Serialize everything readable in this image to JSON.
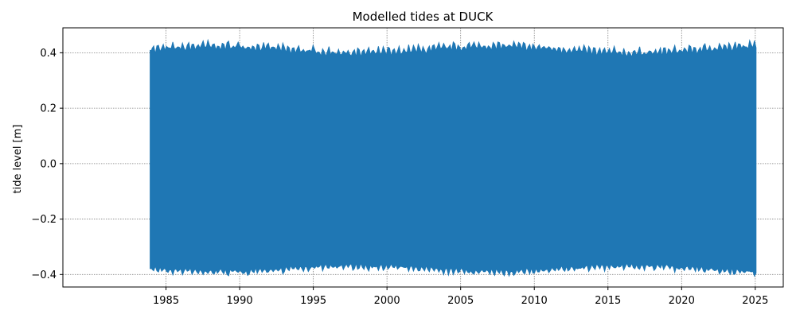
{
  "chart_data": {
    "type": "line",
    "title": "Modelled tides at DUCK",
    "xlabel": "",
    "ylabel": "tide level [m]",
    "xlim": [
      1978.0,
      2026.9
    ],
    "ylim": [
      -0.445,
      0.49
    ],
    "xticks": [
      1985,
      1990,
      1995,
      2000,
      2005,
      2010,
      2015,
      2020,
      2025
    ],
    "yticks": [
      -0.4,
      -0.2,
      0.0,
      0.2,
      0.4
    ],
    "ytick_labels": [
      "−0.4",
      "−0.2",
      "0.0",
      "0.2",
      "0.4"
    ],
    "grid": true,
    "series": [
      {
        "color": "#1f77b4",
        "x": [
          1983.95,
          2025.05
        ],
        "y_min_envelope": [
          -0.38,
          -0.37
        ],
        "y_max_envelope": [
          0.41,
          0.4
        ],
        "mean_high": 0.41,
        "mean_low": -0.38,
        "peak_high": 0.45,
        "peak_low": -0.41
      }
    ]
  }
}
